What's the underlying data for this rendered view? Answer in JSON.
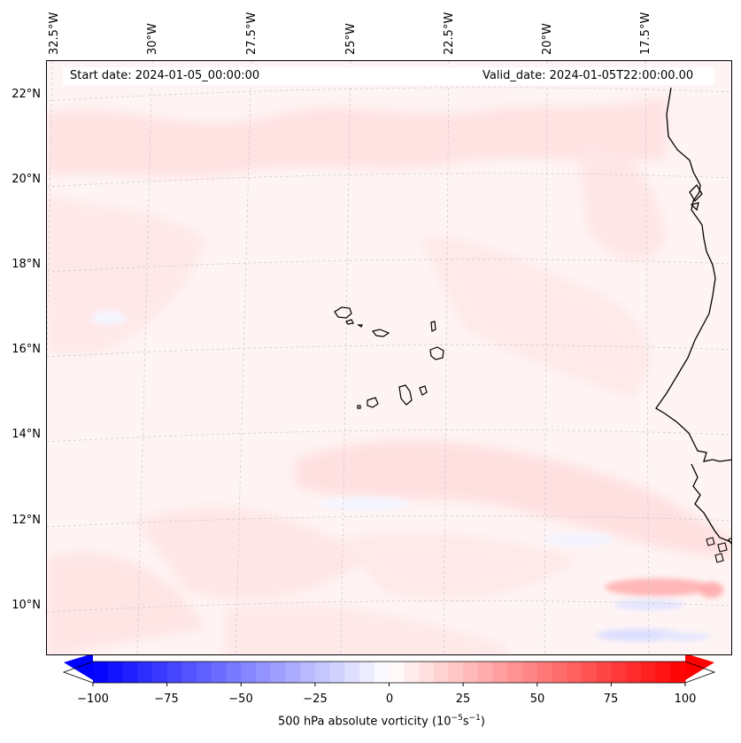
{
  "map": {
    "longitude_labels": [
      "32.5°W",
      "30°W",
      "27.5°W",
      "25°W",
      "22.5°W",
      "20°W",
      "17.5°W"
    ],
    "latitude_labels": [
      "22°N",
      "20°N",
      "18°N",
      "16°N",
      "14°N",
      "12°N",
      "10°N"
    ],
    "start_date": "Start date: 2024-01-05_00:00:00",
    "valid_date": "Valid_date: 2024-01-05T22:00:00.00"
  },
  "colorbar": {
    "ticks": [
      "−100",
      "−75",
      "−50",
      "−25",
      "0",
      "25",
      "50",
      "75",
      "100"
    ],
    "title": "500 hPa absolute vorticity (10",
    "title_exp1": "−5",
    "title_mid": "s",
    "title_exp2": "−1",
    "title_end": ")",
    "min_color": "#0000ff",
    "mid_color": "#ffffff",
    "max_color": "#ff0000"
  }
}
